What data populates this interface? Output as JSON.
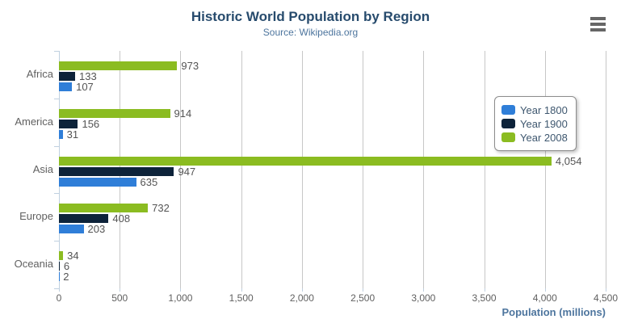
{
  "header": {
    "menu_icon": "hamburger-icon"
  },
  "chart_data": {
    "type": "bar",
    "orientation": "horizontal",
    "title": "Historic World Population by Region",
    "subtitle": "Source: Wikipedia.org",
    "categories": [
      "Africa",
      "America",
      "Asia",
      "Europe",
      "Oceania"
    ],
    "series": [
      {
        "name": "Year 1800",
        "color": "#2f7ed8",
        "values": [
          107,
          31,
          635,
          203,
          2
        ]
      },
      {
        "name": "Year 1900",
        "color": "#0d233a",
        "values": [
          133,
          156,
          947,
          408,
          6
        ]
      },
      {
        "name": "Year 2008",
        "color": "#8bbc21",
        "values": [
          973,
          914,
          4054,
          732,
          34
        ]
      }
    ],
    "bar_order_top_to_bottom": [
      "Year 2008",
      "Year 1900",
      "Year 1800"
    ],
    "data_labels_shown": true,
    "xlabel": "Population (millions)",
    "xlim": [
      0,
      4500
    ],
    "xtick_step": 500,
    "xtick_labels": [
      "0",
      "500",
      "1,000",
      "1,500",
      "2,000",
      "2,500",
      "3,000",
      "3,500",
      "4,000",
      "4,500"
    ],
    "grid": true,
    "legend_position": "right-inside"
  },
  "colors": {
    "title": "#274b6d",
    "subtitle": "#4d759e",
    "axis_title": "#4d759e",
    "axis_line": "#c0d0e0",
    "gridline": "#c7c7c7",
    "tick_label": "#606060",
    "data_label": "#545454",
    "legend_text": "#3e576f",
    "legend_border": "#8c8c8c",
    "menu_icon": "#666666",
    "series_1800": "#2f7ed8",
    "series_1900": "#0d233a",
    "series_2008": "#8bbc21"
  }
}
